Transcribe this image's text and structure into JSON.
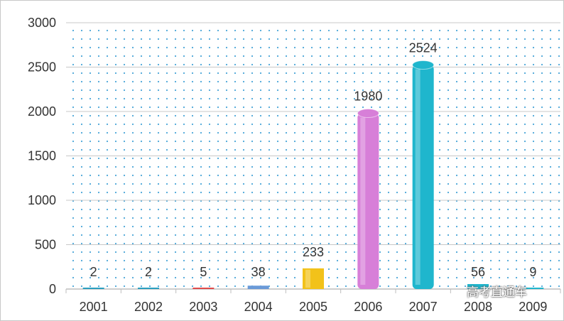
{
  "chart_data": {
    "type": "bar",
    "title": "",
    "xlabel": "",
    "ylabel": "",
    "categories": [
      "2001",
      "2002",
      "2003",
      "2004",
      "2005",
      "2006",
      "2007",
      "2008",
      "2009"
    ],
    "values": [
      2,
      2,
      5,
      38,
      233,
      1980,
      2524,
      56,
      9
    ],
    "ylim": [
      0,
      3000
    ],
    "yticks": [
      0,
      500,
      1000,
      1500,
      2000,
      2500,
      3000
    ],
    "bar_colors": [
      "#2a9fc0",
      "#2a9fc0",
      "#e04a4a",
      "#6a9ad8",
      "#f2c21a",
      "#d77fd8",
      "#1fb6cd",
      "#1fb6cd",
      "#1fb6cd"
    ],
    "grid": true,
    "legend": "none"
  },
  "watermark": "高考直通车"
}
